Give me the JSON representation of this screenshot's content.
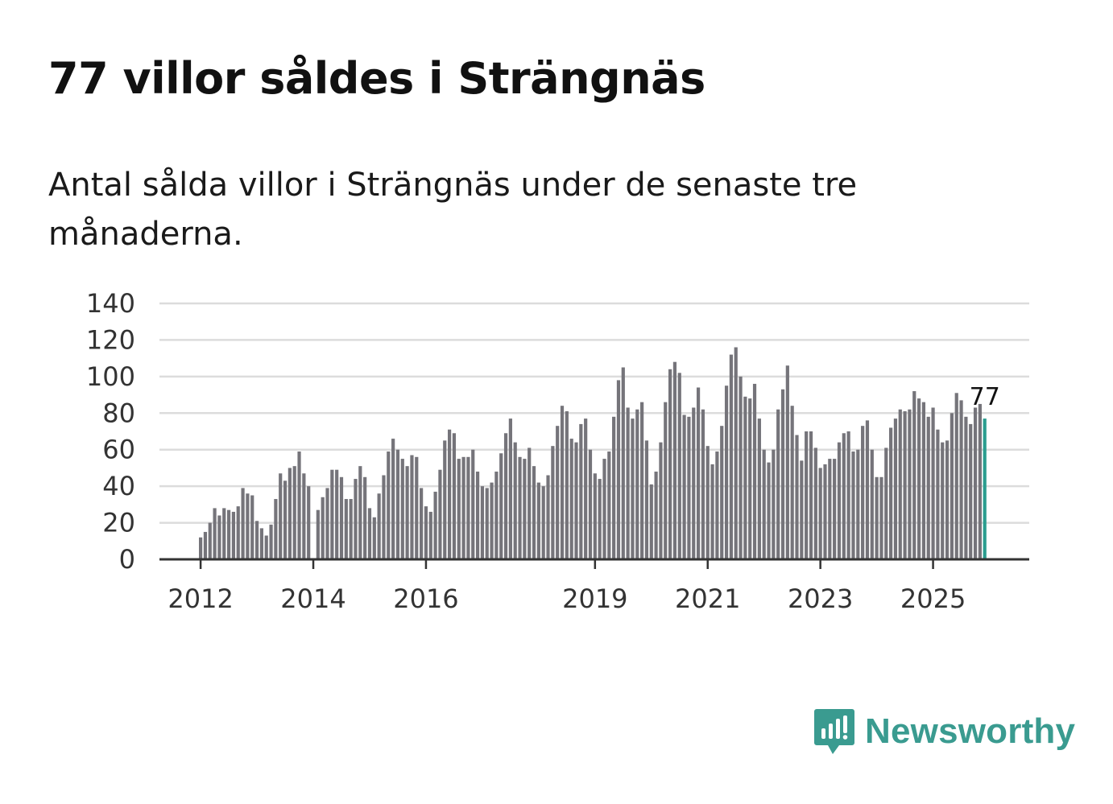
{
  "title": "77 villor såldes i Strängnäs",
  "subtitle": "Antal sålda villor i Strängnäs under de senaste tre månaderna.",
  "brand": {
    "name": "Newsworthy",
    "icon": "newsworthy-logo-icon"
  },
  "colors": {
    "bar": "#75747a",
    "highlight": "#2a9d8f",
    "grid": "#dcdcdc",
    "axis": "#333333",
    "brand": "#3a9b90"
  },
  "chart_data": {
    "type": "bar",
    "title": "Antal sålda villor i Strängnäs",
    "xlabel": "",
    "ylabel": "",
    "ylim": [
      0,
      140
    ],
    "yticks": [
      0,
      20,
      40,
      60,
      80,
      100,
      120,
      140
    ],
    "grid": true,
    "start": "2012-01",
    "frequency": "monthly",
    "x_tick_labels": [
      {
        "label": "2012",
        "month_index": 0
      },
      {
        "label": "2014",
        "month_index": 24
      },
      {
        "label": "2016",
        "month_index": 48
      },
      {
        "label": "2019",
        "month_index": 84
      },
      {
        "label": "2021",
        "month_index": 108
      },
      {
        "label": "2023",
        "month_index": 132
      },
      {
        "label": "2025",
        "month_index": 156
      }
    ],
    "values": [
      12,
      15,
      20,
      28,
      24,
      28,
      27,
      26,
      29,
      39,
      36,
      35,
      21,
      17,
      13,
      19,
      33,
      47,
      43,
      50,
      51,
      59,
      47,
      40,
      null,
      27,
      34,
      39,
      49,
      49,
      45,
      33,
      33,
      44,
      51,
      45,
      28,
      23,
      36,
      46,
      59,
      66,
      60,
      55,
      51,
      57,
      56,
      39,
      29,
      26,
      37,
      49,
      65,
      71,
      69,
      55,
      56,
      56,
      60,
      48,
      40,
      39,
      42,
      48,
      58,
      69,
      77,
      64,
      56,
      55,
      61,
      51,
      42,
      40,
      46,
      62,
      73,
      84,
      81,
      66,
      64,
      74,
      77,
      60,
      47,
      44,
      55,
      59,
      78,
      98,
      105,
      83,
      77,
      82,
      86,
      65,
      41,
      48,
      64,
      86,
      104,
      108,
      102,
      79,
      78,
      83,
      94,
      82,
      62,
      52,
      59,
      73,
      95,
      112,
      116,
      100,
      89,
      88,
      96,
      77,
      60,
      53,
      60,
      82,
      93,
      106,
      84,
      68,
      54,
      70,
      70,
      61,
      50,
      52,
      55,
      55,
      64,
      69,
      70,
      59,
      60,
      73,
      76,
      60,
      45,
      45,
      61,
      72,
      77,
      82,
      81,
      82,
      92,
      88,
      86,
      78,
      83,
      71,
      64,
      65,
      80,
      91,
      87,
      78,
      74,
      83,
      85,
      77
    ],
    "highlight_last": true,
    "last_value_label": "77"
  }
}
